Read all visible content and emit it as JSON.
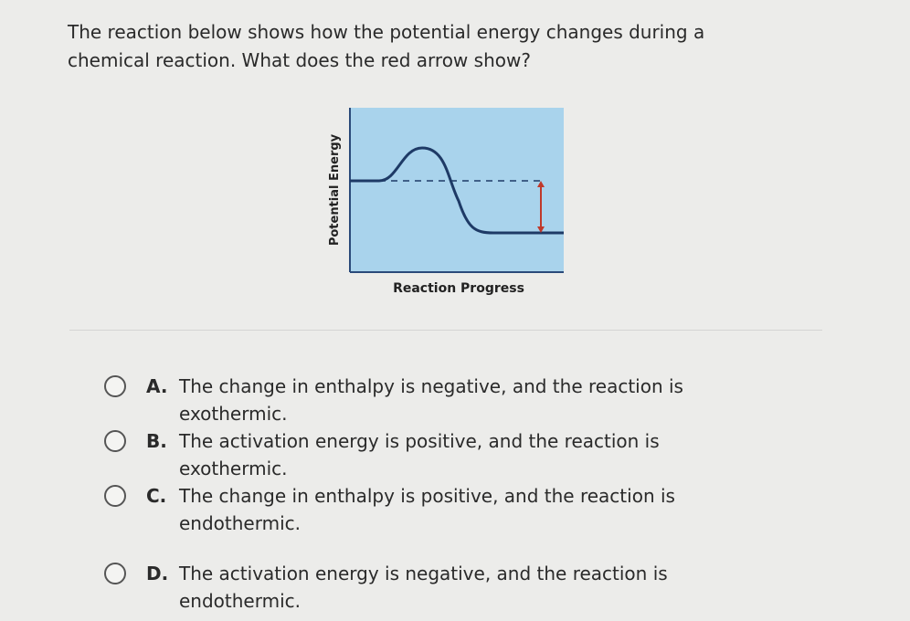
{
  "question": "The reaction below shows how the potential energy changes during a chemical reaction. What does the red arrow show?",
  "diagram": {
    "y_label": "Potential Energy",
    "x_label": "Reaction Progress"
  },
  "options": [
    {
      "letter": "A.",
      "text": "The change in enthalpy is negative, and the reaction is exothermic."
    },
    {
      "letter": "B.",
      "text": "The activation energy is positive, and the reaction is exothermic."
    },
    {
      "letter": "C.",
      "text": "The change in enthalpy is positive, and the reaction is endothermic."
    },
    {
      "letter": "D.",
      "text": "The activation energy is negative, and the reaction is endothermic."
    }
  ]
}
